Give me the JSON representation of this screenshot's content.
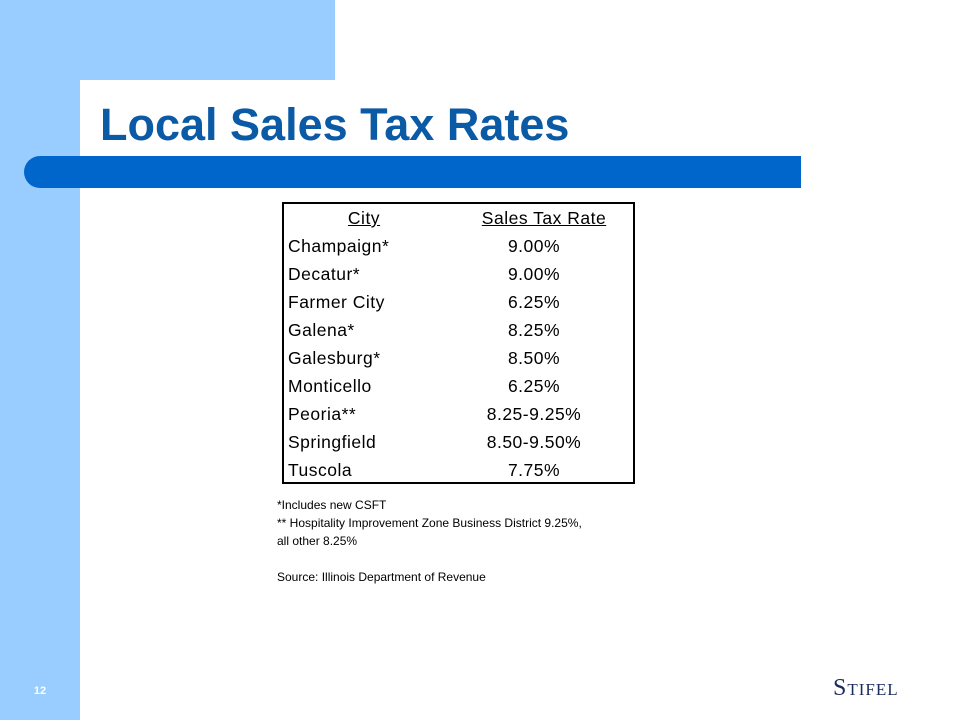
{
  "slide": {
    "title": "Local Sales Tax Rates",
    "number": "12",
    "logo_text": "Stifel"
  },
  "table": {
    "headers": {
      "city": "City",
      "rate": "Sales Tax Rate"
    },
    "rows": [
      {
        "city": "Champaign*",
        "rate": "9.00%"
      },
      {
        "city": "Decatur*",
        "rate": "9.00%"
      },
      {
        "city": "Farmer City",
        "rate": "6.25%"
      },
      {
        "city": "Galena*",
        "rate": "8.25%"
      },
      {
        "city": "Galesburg*",
        "rate": "8.50%"
      },
      {
        "city": "Monticello",
        "rate": "6.25%"
      },
      {
        "city": "Peoria**",
        "rate": "8.25-9.25%"
      },
      {
        "city": "Springfield",
        "rate": "8.50-9.50%"
      },
      {
        "city": "Tuscola",
        "rate": "7.75%"
      }
    ]
  },
  "notes": {
    "line1": "*Includes new CSFT",
    "line2": "** Hospitality Improvement Zone Business District 9.25%,",
    "line3": "all other 8.25%",
    "source": "Source: Illinois Department of Revenue"
  },
  "colors": {
    "accent_light": "#99ccff",
    "accent_dark": "#0066cc",
    "title_color": "#0b5aa6"
  }
}
